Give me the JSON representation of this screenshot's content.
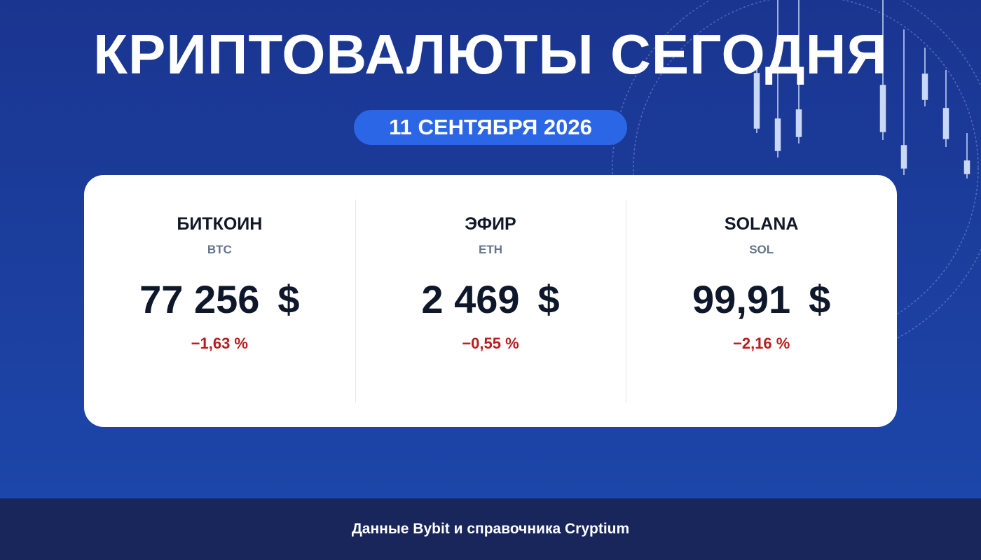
{
  "header": {
    "title": "КРИПТОВАЛЮТЫ СЕГОДНЯ",
    "date": "11 СЕНТЯБРЯ 2026"
  },
  "coins": [
    {
      "name": "БИТКОИН",
      "ticker": "BTC",
      "price": "77 256",
      "currency": "$",
      "change": "−1,63 %"
    },
    {
      "name": "ЭФИР",
      "ticker": "ETH",
      "price": "2 469",
      "currency": "$",
      "change": "−0,55 %"
    },
    {
      "name": "SOLANA",
      "ticker": "SOL",
      "price": "99,91",
      "currency": "$",
      "change": "−2,16 %"
    }
  ],
  "footer": {
    "source": "Данные Bybit и справочника Cryptium"
  }
}
